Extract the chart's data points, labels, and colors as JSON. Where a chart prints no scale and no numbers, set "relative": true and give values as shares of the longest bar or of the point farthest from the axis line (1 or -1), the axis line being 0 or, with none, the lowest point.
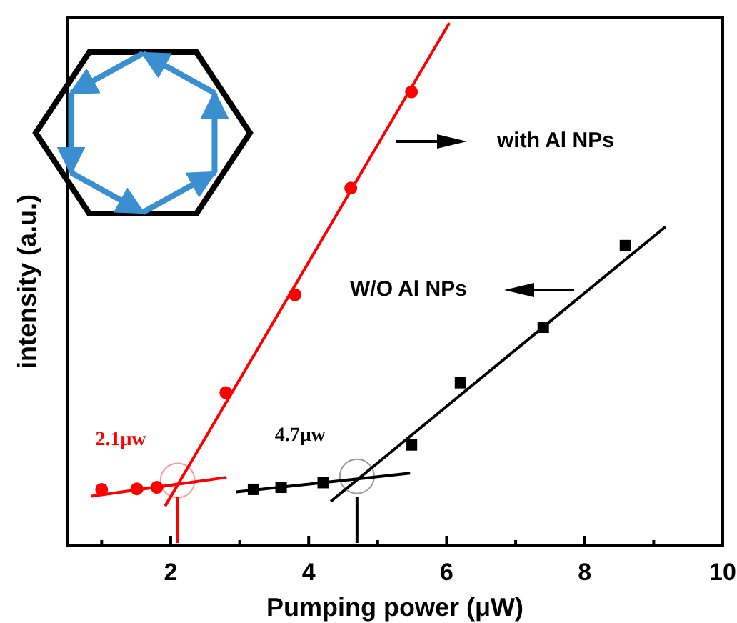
{
  "chart_data": {
    "type": "scatter",
    "relative": true,
    "xlabel": "Pumping power (μW)",
    "ylabel": "intensity (a.u.)",
    "xlim": [
      0.5,
      10
    ],
    "xticks": [
      {
        "value": 1,
        "label": null
      },
      2,
      {
        "value": 3,
        "label": null
      },
      4,
      {
        "value": 5,
        "label": null
      },
      6,
      {
        "value": 7,
        "label": null
      },
      8,
      {
        "value": 9,
        "label": null
      },
      10
    ],
    "tick_labels": "x",
    "grid": false,
    "series": [
      {
        "marker": "circle",
        "color": "#ff0000",
        "x": [
          1.0,
          1.51,
          1.8,
          2.8,
          3.8,
          4.61,
          5.49
        ],
        "values": [
          0.108,
          0.109,
          0.112,
          0.293,
          0.48,
          0.684,
          0.868
        ]
      },
      {
        "marker": "square",
        "color": "#000000",
        "x": [
          3.2,
          3.6,
          4.21,
          5.49,
          6.2,
          7.4,
          8.59
        ],
        "values": [
          0.108,
          0.112,
          0.121,
          0.193,
          0.312,
          0.418,
          0.574
        ]
      },
      {
        "type": "line",
        "color": "#ff0000",
        "x": [
          0.85,
          2.81
        ],
        "values": [
          0.095,
          0.131
        ]
      },
      {
        "type": "line",
        "color": "#ff0000",
        "x": [
          1.92,
          6.04
        ],
        "values": [
          0.076,
          1.0
        ]
      },
      {
        "type": "line",
        "color": "#000000",
        "x": [
          2.95,
          5.47
        ],
        "values": [
          0.103,
          0.139
        ]
      },
      {
        "type": "line",
        "color": "#000000",
        "x": [
          4.32,
          9.17
        ],
        "values": [
          0.085,
          0.61
        ]
      }
    ],
    "ref_lines": [
      {
        "axis": "x",
        "value": 2.1,
        "color": "#ff0000"
      },
      {
        "axis": "x",
        "value": 4.7,
        "color": "#000000"
      }
    ],
    "annotations": [
      {
        "text": "2.1μw",
        "x": 2.1,
        "y": 0.125
      },
      {
        "text": "4.7μw",
        "x": 4.7,
        "y": 0.133
      },
      "with Al NPs",
      "W/O Al NPs"
    ]
  }
}
